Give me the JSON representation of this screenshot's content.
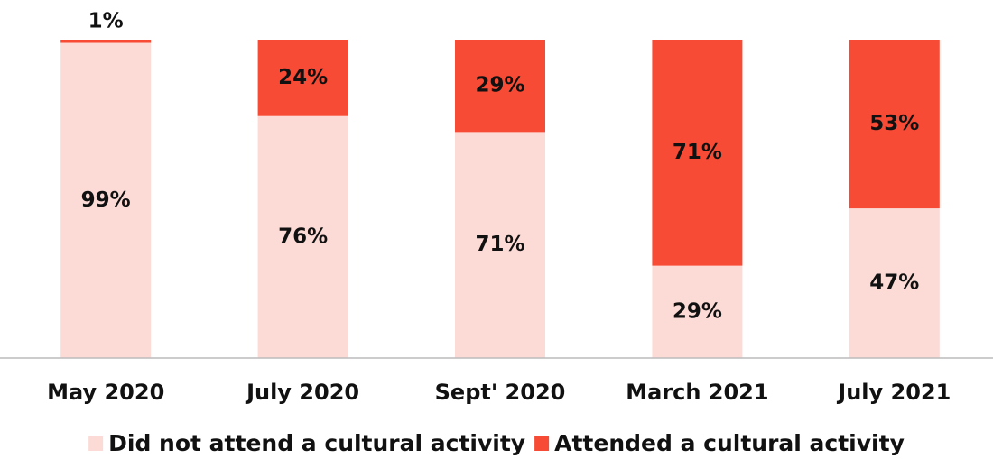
{
  "chart_data": {
    "type": "stacked_bar",
    "categories": [
      "May 2020",
      "July 2020",
      "Sept' 2020",
      "March 2021",
      "July 2021"
    ],
    "series": [
      {
        "name": "Did not attend a cultural activity",
        "color": "#fcdbd6",
        "values": [
          99,
          76,
          71,
          29,
          47
        ],
        "value_labels": [
          "99%",
          "76%",
          "71%",
          "29%",
          "47%"
        ]
      },
      {
        "name": "Attended a cultural activity",
        "color": "#f84b35",
        "values": [
          1,
          24,
          29,
          71,
          53
        ],
        "value_labels": [
          "1%",
          "24%",
          "29%",
          "71%",
          "53%"
        ]
      }
    ],
    "ylim": [
      0,
      100
    ],
    "legend": "bottom"
  }
}
